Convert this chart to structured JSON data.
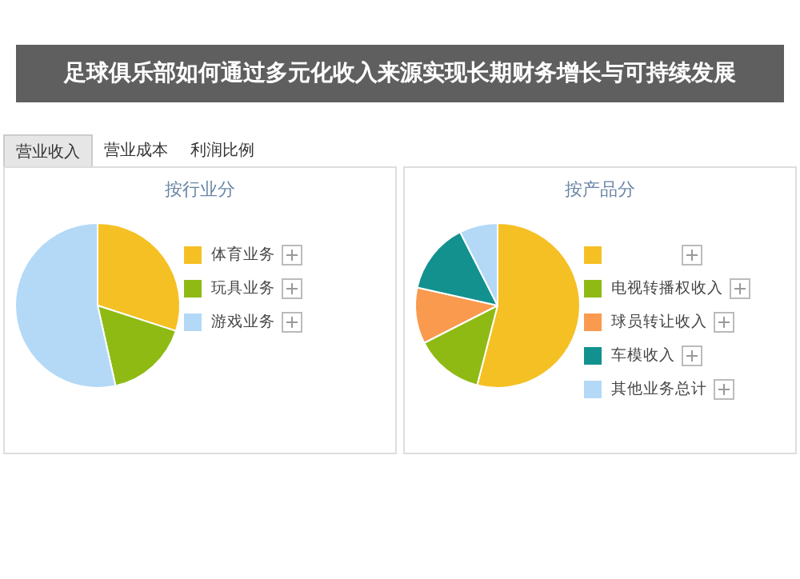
{
  "chart_data": [
    {
      "type": "other",
      "title": "足球俱乐部如何通过多元化收入来源实现长期财务增长与可持续发展",
      "annotations": [
        "营业收入",
        "营业成本",
        "利润比例"
      ]
    },
    {
      "type": "pie",
      "title": "按行业分",
      "categories": [
        "体育业务",
        "玩具业务",
        "游戏业务"
      ],
      "values": [
        30,
        16.5,
        53.5
      ],
      "colors": [
        "#f5c024",
        "#8fba14",
        "#b3d9f7"
      ],
      "legend": "right"
    },
    {
      "type": "pie",
      "title": "按产品分",
      "categories": [
        null,
        "电视转播权收入",
        "球员转让收入",
        "车模收入",
        "其他业务总计"
      ],
      "values": [
        54,
        13.5,
        11,
        14,
        7.5
      ],
      "colors": [
        "#f5c024",
        "#8fba14",
        "#f99a4f",
        "#12918f",
        "#b3d9f7"
      ],
      "legend": "right"
    }
  ]
}
